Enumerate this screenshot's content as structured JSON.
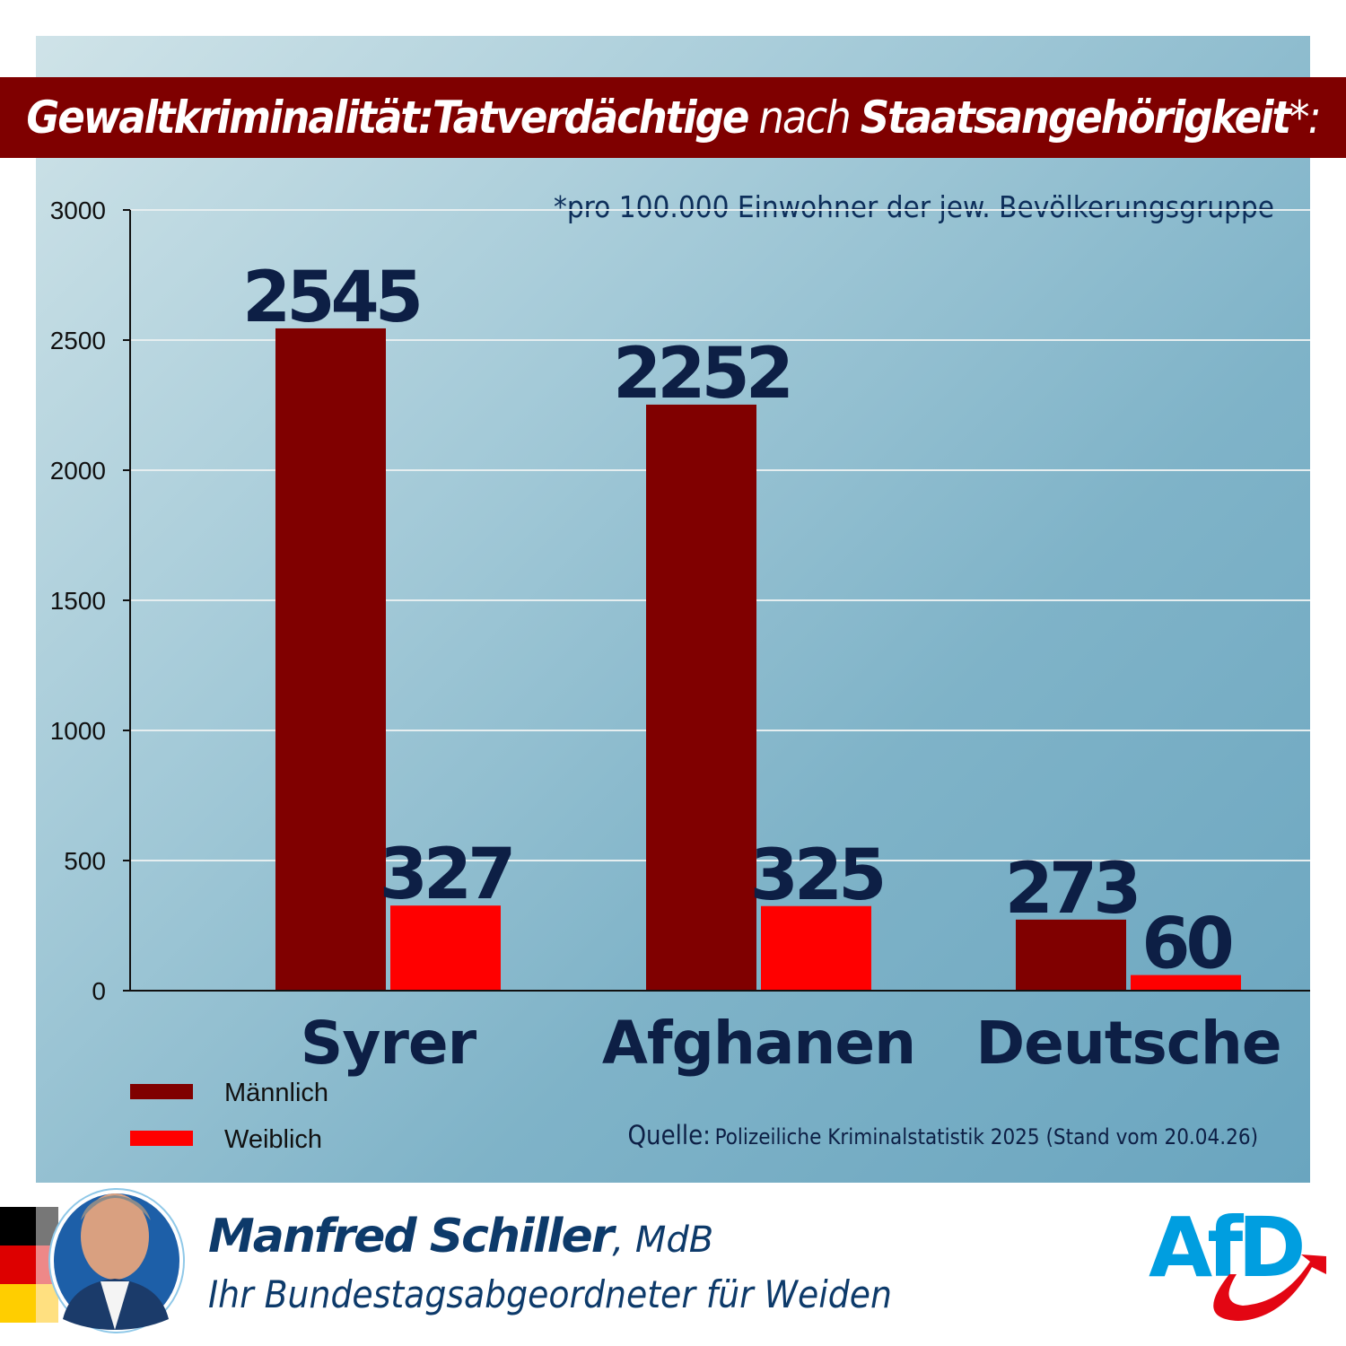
{
  "header": {
    "title_part1": "Gewaltkriminalität:Tatverdächtige",
    "title_part2": "nach",
    "title_part3": "Staatsangehörigkeit",
    "title_part4": "*:"
  },
  "chart_data": {
    "type": "bar",
    "title": "Gewaltkriminalität:Tatverdächtige nach Staatsangehörigkeit*:",
    "note": "*pro 100.000 Einwohner der jew. Bevölkerungsgruppe",
    "categories": [
      "Syrer",
      "Afghanen",
      "Deutsche"
    ],
    "series": [
      {
        "name": "Männlich",
        "values": [
          2545,
          2252,
          273
        ],
        "color": "#800000"
      },
      {
        "name": "Weiblich",
        "values": [
          327,
          325,
          60
        ],
        "color": "#ff0000"
      }
    ],
    "ylim": [
      0,
      3000
    ],
    "yticks": [
      0,
      500,
      1000,
      1500,
      2000,
      2500,
      3000
    ],
    "grid": true,
    "legend_placement": "bottom-left",
    "source_label": "Quelle:",
    "source_text": "Polizeiliche Kriminalstatistik 2025 (Stand vom 20.04.26)"
  },
  "footer": {
    "name": "Manfred Schiller",
    "suffix": ", MdB",
    "subtitle": "Ihr Bundestagsabgeordneter für Weiden",
    "logo_text": "AfD",
    "flag_colors": [
      "#000000",
      "#dd0000",
      "#ffce00"
    ],
    "logo_colors": [
      "#009ee0",
      "#e30613"
    ]
  }
}
